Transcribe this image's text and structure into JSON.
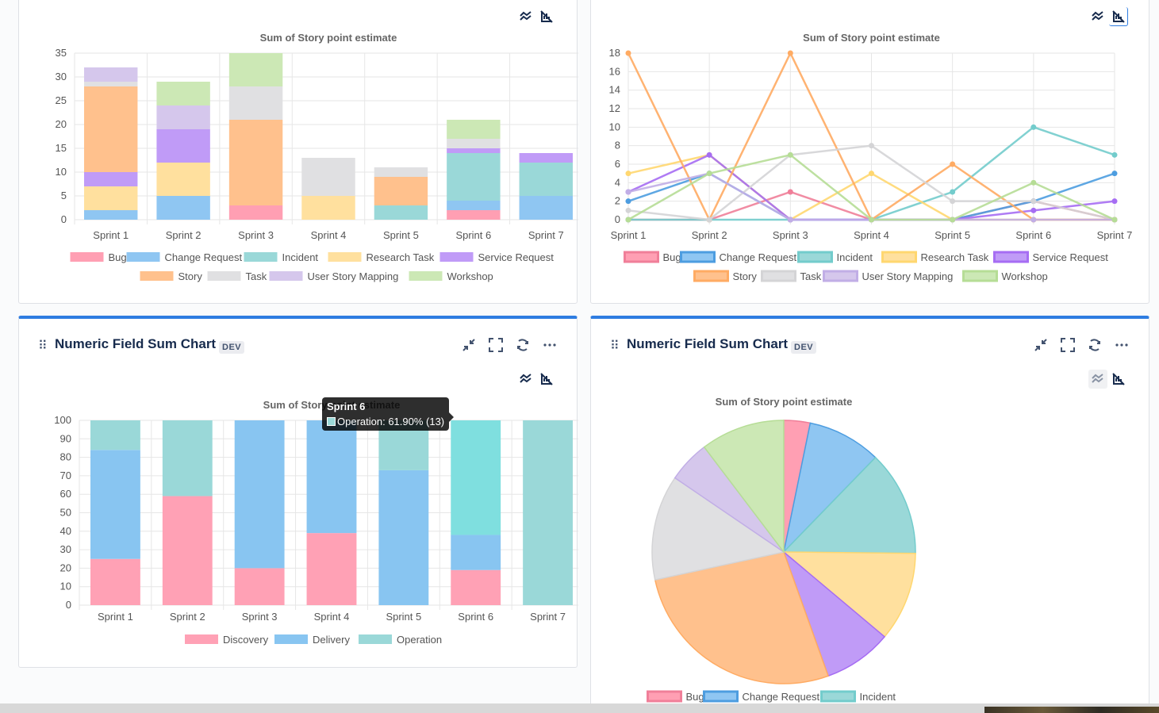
{
  "panels": [
    {
      "title": "",
      "badge": ""
    },
    {
      "title": "",
      "badge": ""
    },
    {
      "title": "Numeric Field Sum Chart",
      "badge": "DEV"
    },
    {
      "title": "Numeric Field Sum Chart",
      "badge": "DEV"
    }
  ],
  "colors": {
    "Bug": "#ff9fb3",
    "Change Request": "#8fc6f2",
    "Incident": "#9ad8d8",
    "Research Task": "#ffe09e",
    "Service Request": "#c09bf7",
    "Story": "#ffc18d",
    "Task": "#e0e0e2",
    "User Story Mapping": "#d5c7ec",
    "Workshop": "#cce8b5",
    "Discovery": "#ffa1b5",
    "Delivery": "#88c5f1",
    "Operation": "#9ad8d8",
    "accent": "#2f7de1"
  },
  "lineColors": {
    "Bug": "#f07f99",
    "Change Request": "#4d9de0",
    "Incident": "#73cccc",
    "Research Task": "#ffd770",
    "Service Request": "#a66df3",
    "Story": "#ffab63",
    "Task": "#d4d4d6",
    "User Story Mapping": "#c1aee6",
    "Workshop": "#b6dd96"
  },
  "icons": {
    "collapse": "collapse-icon",
    "fullscreen": "fullscreen-icon",
    "refresh": "refresh-icon",
    "more": "more-icon",
    "trend": "trend-icon",
    "hide-labels": "hide-labels-icon"
  },
  "tooltip": {
    "title": "Sprint 6",
    "text": "Operation: 61.90% (13)"
  },
  "chart_data": [
    {
      "type": "bar",
      "stacked": true,
      "title": "Sum of Story point estimate",
      "categories": [
        "Sprint 1",
        "Sprint 2",
        "Sprint 3",
        "Sprint 4",
        "Sprint 5",
        "Sprint 6",
        "Sprint 7"
      ],
      "ylim": [
        0,
        35
      ],
      "yticks": [
        0,
        5,
        10,
        15,
        20,
        25,
        30,
        35
      ],
      "series": [
        {
          "name": "Bug",
          "values": [
            0,
            0,
            3,
            0,
            0,
            2,
            0
          ]
        },
        {
          "name": "Change Request",
          "values": [
            2,
            5,
            0,
            0,
            0,
            2,
            5
          ]
        },
        {
          "name": "Incident",
          "values": [
            0,
            0,
            0,
            0,
            3,
            10,
            7
          ]
        },
        {
          "name": "Research Task",
          "values": [
            5,
            7,
            0,
            5,
            0,
            0,
            0
          ]
        },
        {
          "name": "Service Request",
          "values": [
            3,
            7,
            0,
            0,
            0,
            1,
            2
          ]
        },
        {
          "name": "Story",
          "values": [
            18,
            0,
            18,
            0,
            6,
            0,
            0
          ]
        },
        {
          "name": "Task",
          "values": [
            1,
            0,
            7,
            8,
            2,
            2,
            0
          ]
        },
        {
          "name": "User Story Mapping",
          "values": [
            3,
            5,
            0,
            0,
            0,
            0,
            0
          ]
        },
        {
          "name": "Workshop",
          "values": [
            0,
            5,
            7,
            0,
            0,
            4,
            0
          ]
        }
      ],
      "legend": [
        "Bug",
        "Change Request",
        "Incident",
        "Research Task",
        "Service Request",
        "Story",
        "Task",
        "User Story Mapping",
        "Workshop"
      ]
    },
    {
      "type": "line",
      "title": "Sum of Story point estimate",
      "categories": [
        "Sprint 1",
        "Sprint 2",
        "Sprint 3",
        "Sprint 4",
        "Sprint 5",
        "Sprint 6",
        "Sprint 7"
      ],
      "ylim": [
        0,
        18
      ],
      "yticks": [
        0,
        2,
        4,
        6,
        8,
        10,
        12,
        14,
        16,
        18
      ],
      "series": [
        {
          "name": "Bug",
          "values": [
            0,
            0,
            3,
            0,
            0,
            2,
            0
          ]
        },
        {
          "name": "Change Request",
          "values": [
            2,
            5,
            0,
            0,
            0,
            2,
            5
          ]
        },
        {
          "name": "Incident",
          "values": [
            0,
            0,
            0,
            0,
            3,
            10,
            7
          ]
        },
        {
          "name": "Research Task",
          "values": [
            5,
            7,
            0,
            5,
            0,
            0,
            0
          ]
        },
        {
          "name": "Service Request",
          "values": [
            3,
            7,
            0,
            0,
            0,
            1,
            2
          ]
        },
        {
          "name": "Story",
          "values": [
            18,
            0,
            18,
            0,
            6,
            0,
            0
          ]
        },
        {
          "name": "Task",
          "values": [
            1,
            0,
            7,
            8,
            2,
            2,
            0
          ]
        },
        {
          "name": "User Story Mapping",
          "values": [
            3,
            5,
            0,
            0,
            0,
            0,
            0
          ]
        },
        {
          "name": "Workshop",
          "values": [
            0,
            5,
            7,
            0,
            0,
            4,
            0
          ]
        }
      ],
      "legend": [
        "Bug",
        "Change Request",
        "Incident",
        "Research Task",
        "Service Request",
        "Story",
        "Task",
        "User Story Mapping",
        "Workshop"
      ]
    },
    {
      "type": "bar",
      "stacked": true,
      "percent": true,
      "title": "Sum of Story point estimate",
      "categories": [
        "Sprint 1",
        "Sprint 2",
        "Sprint 3",
        "Sprint 4",
        "Sprint 5",
        "Sprint 6",
        "Sprint 7"
      ],
      "ylim": [
        0,
        100
      ],
      "yticks": [
        0,
        10,
        20,
        30,
        40,
        50,
        60,
        70,
        80,
        90,
        100
      ],
      "series": [
        {
          "name": "Discovery",
          "values": [
            25,
            59,
            20,
            39,
            0,
            19,
            0
          ]
        },
        {
          "name": "Delivery",
          "values": [
            59,
            0,
            80,
            61,
            73,
            19,
            0
          ]
        },
        {
          "name": "Operation",
          "values": [
            16,
            41,
            0,
            0,
            27,
            62,
            100
          ]
        }
      ],
      "legend": [
        "Discovery",
        "Delivery",
        "Operation"
      ]
    },
    {
      "type": "pie",
      "title": "Sum of Story point estimate",
      "slices": [
        {
          "name": "Bug",
          "value": 5
        },
        {
          "name": "Change Request",
          "value": 14
        },
        {
          "name": "Incident",
          "value": 20
        },
        {
          "name": "Research Task",
          "value": 17
        },
        {
          "name": "Service Request",
          "value": 13
        },
        {
          "name": "Story",
          "value": 42
        },
        {
          "name": "Task",
          "value": 20
        },
        {
          "name": "User Story Mapping",
          "value": 8
        },
        {
          "name": "Workshop",
          "value": 16
        }
      ],
      "legend": [
        "Bug",
        "Change Request",
        "Incident"
      ]
    }
  ]
}
